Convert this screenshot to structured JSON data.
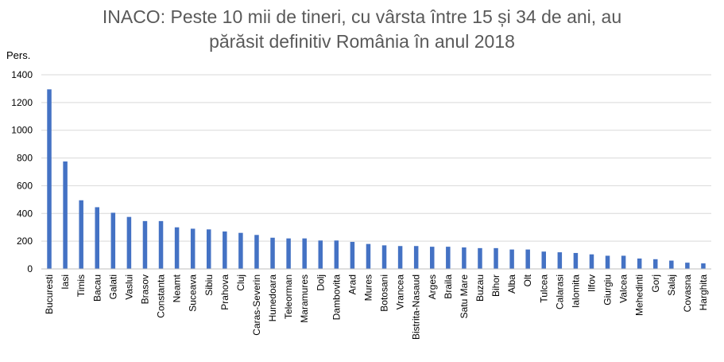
{
  "chart_data": {
    "type": "bar",
    "title_lines": [
      "INACO: Peste 10 mii de tineri, cu vârsta între 15 și 34 de ani, au",
      "părăsit definitiv România în anul 2018"
    ],
    "ylabel": "Pers.",
    "xlabel": "",
    "ylim": [
      0,
      1400
    ],
    "yticks": [
      "0",
      "200",
      "400",
      "600",
      "800",
      "1000",
      "1200",
      "1400"
    ],
    "grid": true,
    "bar_color": "#4472c4",
    "categories": [
      "Bucuresti",
      "Iasi",
      "Timis",
      "Bacau",
      "Galati",
      "Vaslui",
      "Brasov",
      "Constanta",
      "Neamt",
      "Suceava",
      "Sibiu",
      "Prahova",
      "Cluj",
      "Caras-Severin",
      "Hunedoara",
      "Teleorman",
      "Maramures",
      "Dolj",
      "Dambovita",
      "Arad",
      "Mures",
      "Botosani",
      "Vrancea",
      "Bistrita-Nasaud",
      "Arges",
      "Braila",
      "Satu Mare",
      "Buzau",
      "Bihor",
      "Alba",
      "Olt",
      "Tulcea",
      "Calarasi",
      "Ialomita",
      "Ilfov",
      "Giurgiu",
      "Valcea",
      "Mehedinti",
      "Gorj",
      "Salaj",
      "Covasna",
      "Harghita"
    ],
    "values": [
      1295,
      775,
      495,
      445,
      405,
      375,
      345,
      345,
      300,
      290,
      285,
      270,
      260,
      245,
      225,
      220,
      220,
      205,
      205,
      195,
      180,
      170,
      165,
      165,
      160,
      160,
      155,
      150,
      150,
      140,
      140,
      125,
      120,
      115,
      105,
      95,
      95,
      75,
      70,
      60,
      45,
      40
    ]
  }
}
